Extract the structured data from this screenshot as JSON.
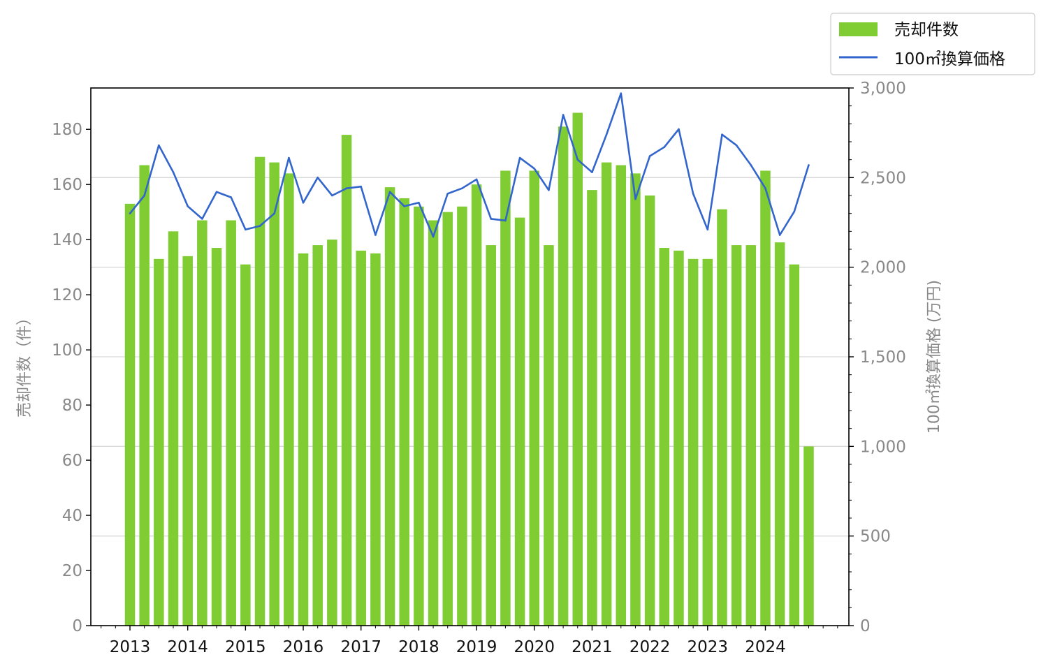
{
  "chart_data": {
    "type": "bar",
    "x_ticks": [
      "2013",
      "2014",
      "2015",
      "2016",
      "2017",
      "2018",
      "2019",
      "2020",
      "2021",
      "2022",
      "2023",
      "2024"
    ],
    "x_start_year": 2013,
    "periods_per_year": 4,
    "ylabel": "売却件数（件）",
    "y2label": "100㎡換算価格 (万円)",
    "ylim": [
      0,
      195
    ],
    "y2lim": [
      0,
      3000
    ],
    "y_ticks": [
      "0",
      "20",
      "40",
      "60",
      "80",
      "100",
      "120",
      "140",
      "160",
      "180"
    ],
    "y2_ticks": [
      "0",
      "500",
      "1,000",
      "1,500",
      "2,000",
      "2,500",
      "3,000"
    ],
    "grid": "horizontal, right axis",
    "legend_position": "top-right",
    "series": [
      {
        "name": "売却件数",
        "type": "bar",
        "axis": "left",
        "color": "#7fcc33",
        "values": [
          153,
          167,
          133,
          143,
          134,
          147,
          137,
          147,
          131,
          170,
          168,
          164,
          135,
          138,
          140,
          178,
          136,
          135,
          159,
          155,
          152,
          147,
          150,
          152,
          160,
          138,
          165,
          148,
          165,
          138,
          181,
          186,
          158,
          168,
          167,
          164,
          156,
          137,
          136,
          133,
          133,
          151,
          138,
          138,
          165,
          139,
          131,
          65
        ]
      },
      {
        "name": "100㎡換算価格",
        "type": "line",
        "axis": "right",
        "color": "#3366cc",
        "values": [
          2300,
          2400,
          2680,
          2530,
          2340,
          2270,
          2420,
          2390,
          2210,
          2230,
          2300,
          2610,
          2360,
          2500,
          2400,
          2440,
          2450,
          2180,
          2420,
          2340,
          2360,
          2170,
          2410,
          2440,
          2490,
          2270,
          2260,
          2610,
          2550,
          2430,
          2850,
          2600,
          2530,
          2740,
          2970,
          2380,
          2620,
          2670,
          2770,
          2410,
          2210,
          2740,
          2680,
          2570,
          2440,
          2180,
          2310,
          2570
        ]
      }
    ]
  }
}
